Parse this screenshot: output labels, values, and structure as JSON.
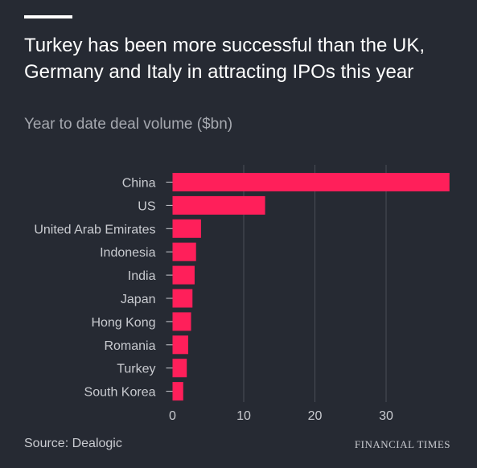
{
  "colors": {
    "background": "#262a33",
    "bar": "#ff1f5a",
    "text": "#c9cbd0",
    "gridline": "#4a4e57"
  },
  "header": {
    "title": "Turkey has been more successful than the UK, Germany and Italy in attracting IPOs this year",
    "subtitle": "Year to date deal volume ($bn)"
  },
  "chart_data": {
    "type": "bar",
    "orientation": "horizontal",
    "categories": [
      "China",
      "US",
      "United Arab Emirates",
      "Indonesia",
      "India",
      "Japan",
      "Hong Kong",
      "Romania",
      "Turkey",
      "South Korea"
    ],
    "values": [
      38.9,
      13.0,
      4.0,
      3.3,
      3.1,
      2.8,
      2.6,
      2.2,
      2.0,
      1.5
    ],
    "xlim": [
      0,
      40
    ],
    "xticks": [
      0,
      10,
      20,
      30
    ],
    "grid": true
  },
  "footer": {
    "source": "Source: Dealogic",
    "brand": "FINANCIAL TIMES"
  }
}
